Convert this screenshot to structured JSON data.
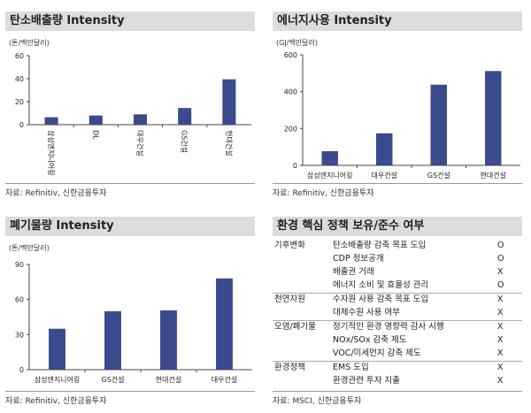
{
  "chart_data": [
    {
      "type": "bar",
      "title": "탄소배출량 Intensity",
      "ylabel": "(톤/백만달러)",
      "categories": [
        "삼성엔지니어링",
        "DL",
        "대우건설",
        "GS건설",
        "현대건설"
      ],
      "values": [
        6.5,
        8,
        9,
        14.5,
        39.5
      ],
      "ylim": [
        0,
        60
      ],
      "yticks": [
        "0",
        "20",
        "40",
        "60"
      ],
      "source": "자료: Refinitiv, 신한금융투자",
      "color": "#3b4a8c"
    },
    {
      "type": "bar",
      "title": "에너지사용 Intensity",
      "ylabel": "(GJ/백만달러)",
      "categories": [
        "삼성엔지니어링",
        "대우건설",
        "GS건설",
        "현대건설"
      ],
      "values": [
        77,
        174,
        438,
        512
      ],
      "ylim": [
        0,
        600
      ],
      "yticks": [
        "0",
        "200",
        "400",
        "600"
      ],
      "source": "자료: Refinitiv, 신한금융투자",
      "color": "#3b4a8c"
    },
    {
      "type": "bar",
      "title": "폐기물량 Intensity",
      "ylabel": "(톤/백만달러)",
      "categories": [
        "삼성엔지니어링",
        "GS건설",
        "현대건설",
        "대우건설"
      ],
      "values": [
        35,
        50,
        50.7,
        78
      ],
      "ylim": [
        0,
        90
      ],
      "yticks": [
        "0",
        "30",
        "60",
        "90"
      ],
      "source": "자료: Refinitiv, 신한금융투자",
      "color": "#3b4a8c"
    }
  ],
  "policy_table": {
    "title": "환경 핵심 정책 보유/준수 여부",
    "groups": [
      {
        "name": "기후변화",
        "items": [
          [
            "탄소배출량 감축 목표 도입",
            "O"
          ],
          [
            "CDP 정보공개",
            "O"
          ],
          [
            "배출권 거래",
            "X"
          ],
          [
            "에너지 소비 및 효율성 관리",
            "O"
          ]
        ]
      },
      {
        "name": "천연자원",
        "items": [
          [
            "수자원 사용 감축 목표 도입",
            "X"
          ],
          [
            "대체수원 사용 여부",
            "X"
          ]
        ]
      },
      {
        "name": "오염/폐기물",
        "items": [
          [
            "정기적인 환경 영향력 감사 시행",
            "X"
          ],
          [
            "NOx/SOx 감축 제도",
            "X"
          ],
          [
            "VOC/미세먼지 감축 제도",
            "X"
          ]
        ]
      },
      {
        "name": "환경정책",
        "items": [
          [
            "EMS 도입",
            "X"
          ],
          [
            "환경관련 투자 지출",
            "X"
          ]
        ]
      }
    ],
    "source": "자료: MSCI, 신한금융투자"
  }
}
